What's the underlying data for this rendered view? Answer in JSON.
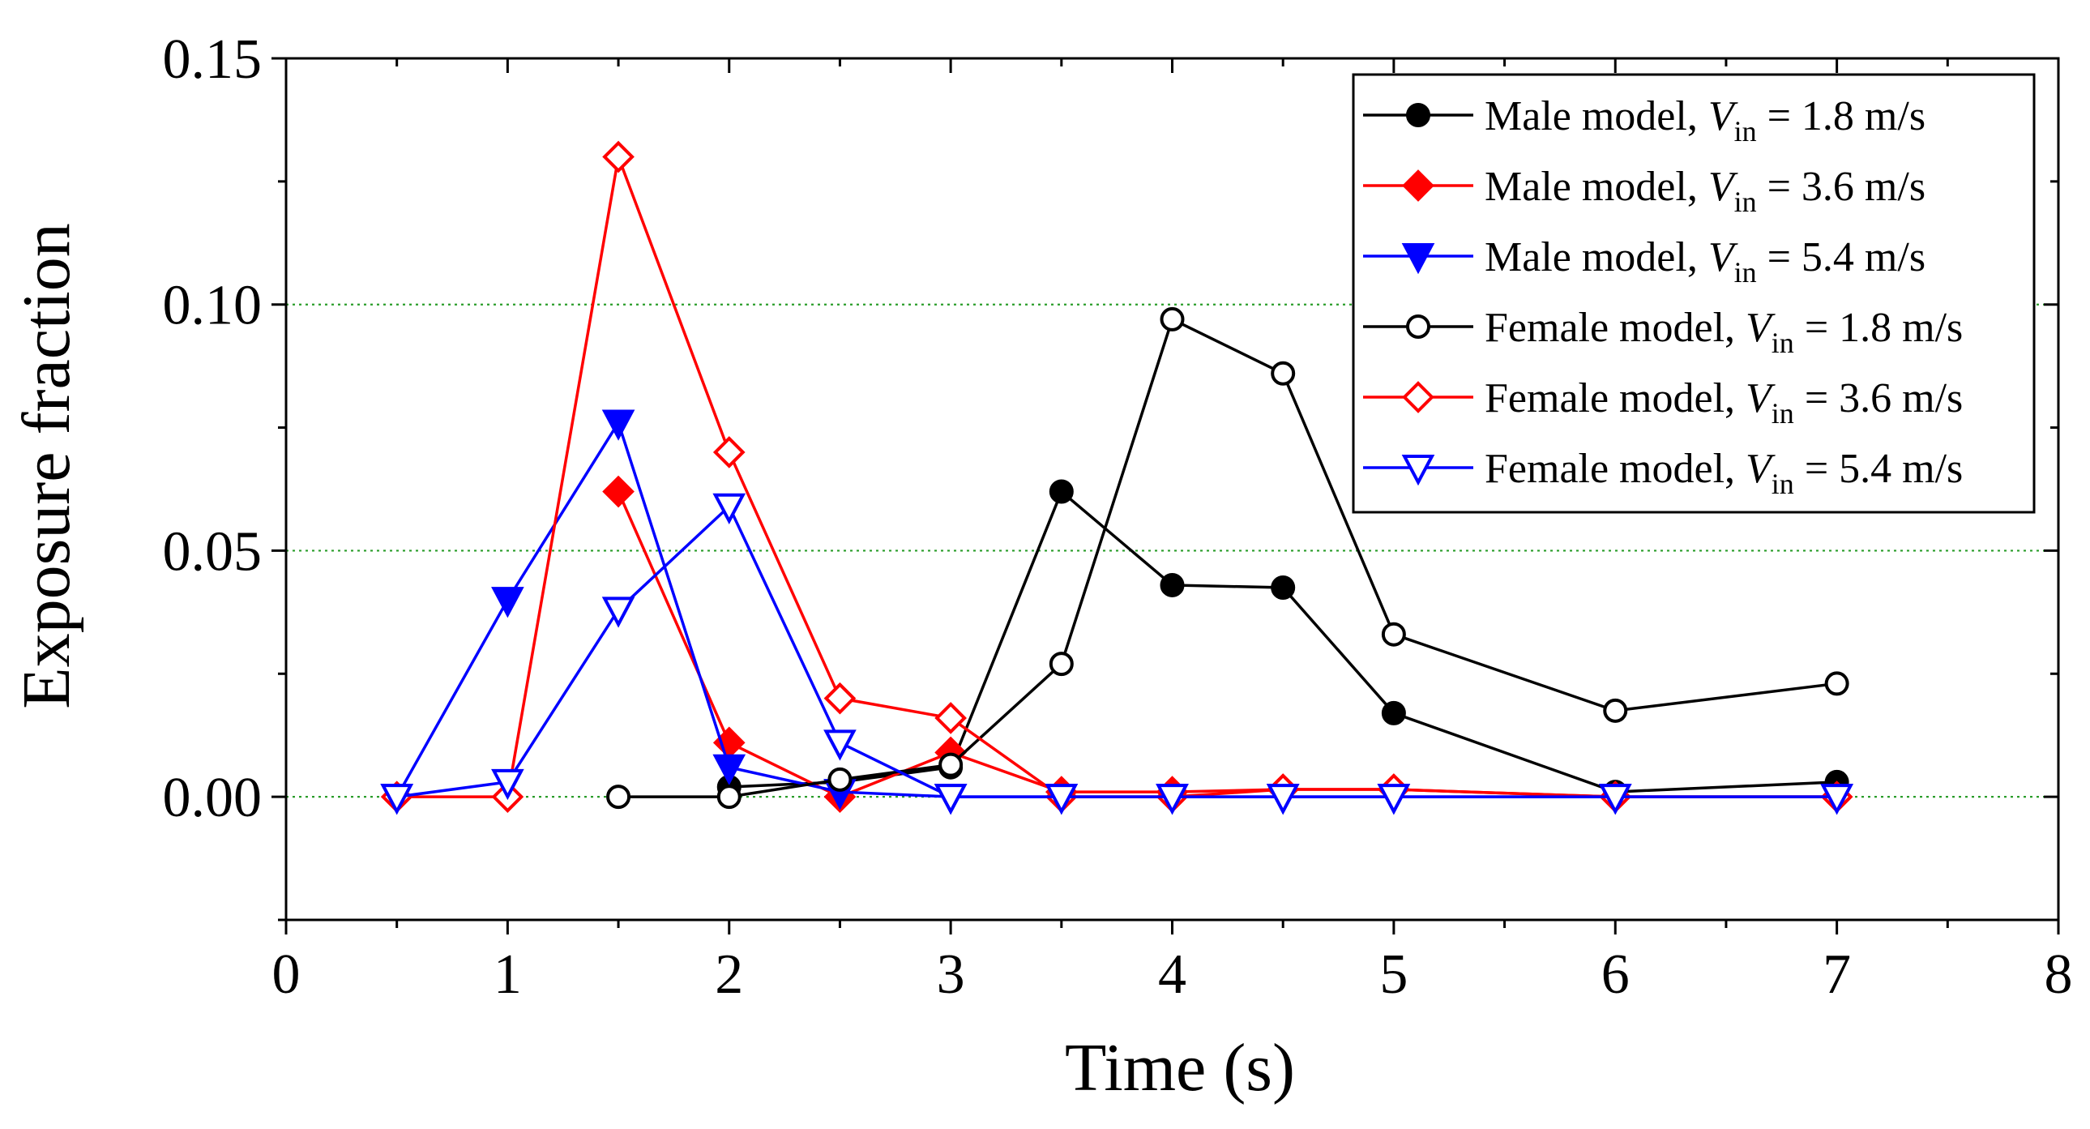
{
  "chart_data": {
    "type": "line",
    "xlabel": "Time (s)",
    "ylabel": "Exposure fraction",
    "xlim": [
      0,
      8
    ],
    "ylim": [
      -0.025,
      0.15
    ],
    "xticks": [
      "0",
      "1",
      "2",
      "3",
      "4",
      "5",
      "6",
      "7",
      "8"
    ],
    "yticks": [
      "0.00",
      "0.05",
      "0.10",
      "0.15"
    ],
    "grid": "horizontal dotted green at 0.00, 0.05, 0.10",
    "legend_position": "top-right",
    "x": [
      0.5,
      1,
      1.5,
      2,
      2.5,
      3,
      3.5,
      4,
      4.5,
      5,
      6,
      7
    ],
    "series": [
      {
        "name_prefix": "Male model, ",
        "var": "V",
        "sub": "in",
        "name_suffix": " = 1.8 m/s",
        "color": "#000000",
        "marker": "circle",
        "filled": true,
        "values": [
          null,
          null,
          null,
          0.002,
          0.003,
          0.006,
          0.062,
          0.043,
          0.0425,
          0.017,
          0.001,
          0.003
        ]
      },
      {
        "name_prefix": "Male model, ",
        "var": "V",
        "sub": "in",
        "name_suffix": " = 3.6 m/s",
        "color": "#ff0000",
        "marker": "diamond",
        "filled": true,
        "values": [
          null,
          null,
          0.062,
          0.011,
          0.0,
          0.009,
          0.001,
          0.001,
          0.0015,
          0.0015,
          0.0,
          0.0
        ]
      },
      {
        "name_prefix": "Male model, ",
        "var": "V",
        "sub": "in",
        "name_suffix": " = 5.4 m/s",
        "color": "#0000ff",
        "marker": "triangle-down",
        "filled": true,
        "values": [
          0.0,
          0.04,
          0.076,
          0.006,
          0.001,
          0.0,
          0.0,
          0.0,
          0.0,
          0.0,
          0.0,
          0.0
        ]
      },
      {
        "name_prefix": "Female model, ",
        "var": "V",
        "sub": "in",
        "name_suffix": " = 1.8 m/s",
        "color": "#000000",
        "marker": "circle",
        "filled": false,
        "values": [
          null,
          null,
          0.0,
          0.0,
          0.0035,
          0.0065,
          0.027,
          0.097,
          0.086,
          0.033,
          0.0175,
          0.023
        ]
      },
      {
        "name_prefix": "Female model, ",
        "var": "V",
        "sub": "in",
        "name_suffix": " = 3.6 m/s",
        "color": "#ff0000",
        "marker": "diamond",
        "filled": false,
        "values": [
          0.0,
          0.0,
          0.13,
          0.07,
          0.02,
          0.016,
          0.0,
          0.0,
          0.0015,
          0.0015,
          0.0,
          0.0
        ]
      },
      {
        "name_prefix": "Female model, ",
        "var": "V",
        "sub": "in",
        "name_suffix": " = 5.4 m/s",
        "color": "#0000ff",
        "marker": "triangle-down",
        "filled": false,
        "values": [
          0.0,
          0.003,
          0.038,
          0.059,
          0.011,
          0.0,
          0.0,
          0.0,
          0.0,
          0.0,
          0.0,
          0.0
        ]
      }
    ]
  }
}
